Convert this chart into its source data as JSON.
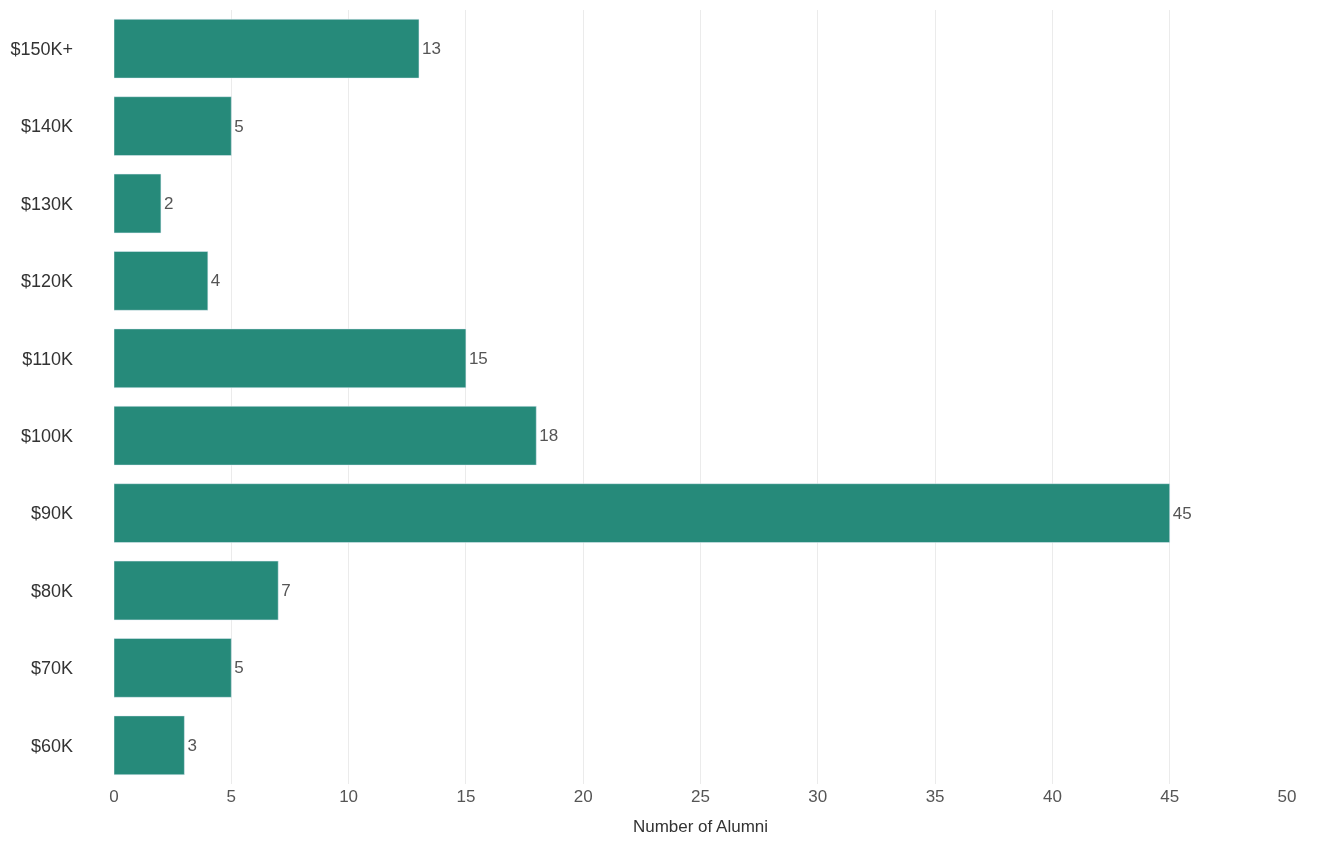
{
  "chart_data": {
    "type": "bar",
    "orientation": "horizontal",
    "xlabel": "Number of Alumni",
    "categories": [
      "$150K+",
      "$140K",
      "$130K",
      "$120K",
      "$110K",
      "$100K",
      "$90K",
      "$80K",
      "$70K",
      "$60K"
    ],
    "values": [
      13,
      5,
      2,
      4,
      15,
      18,
      45,
      7,
      5,
      3
    ],
    "color": "#268a7a",
    "data_labels": true,
    "grid": "x",
    "legend": false,
    "xlim": [
      0,
      50
    ],
    "xticks": [
      0,
      5,
      10,
      15,
      20,
      25,
      30,
      35,
      40,
      45,
      50
    ]
  }
}
